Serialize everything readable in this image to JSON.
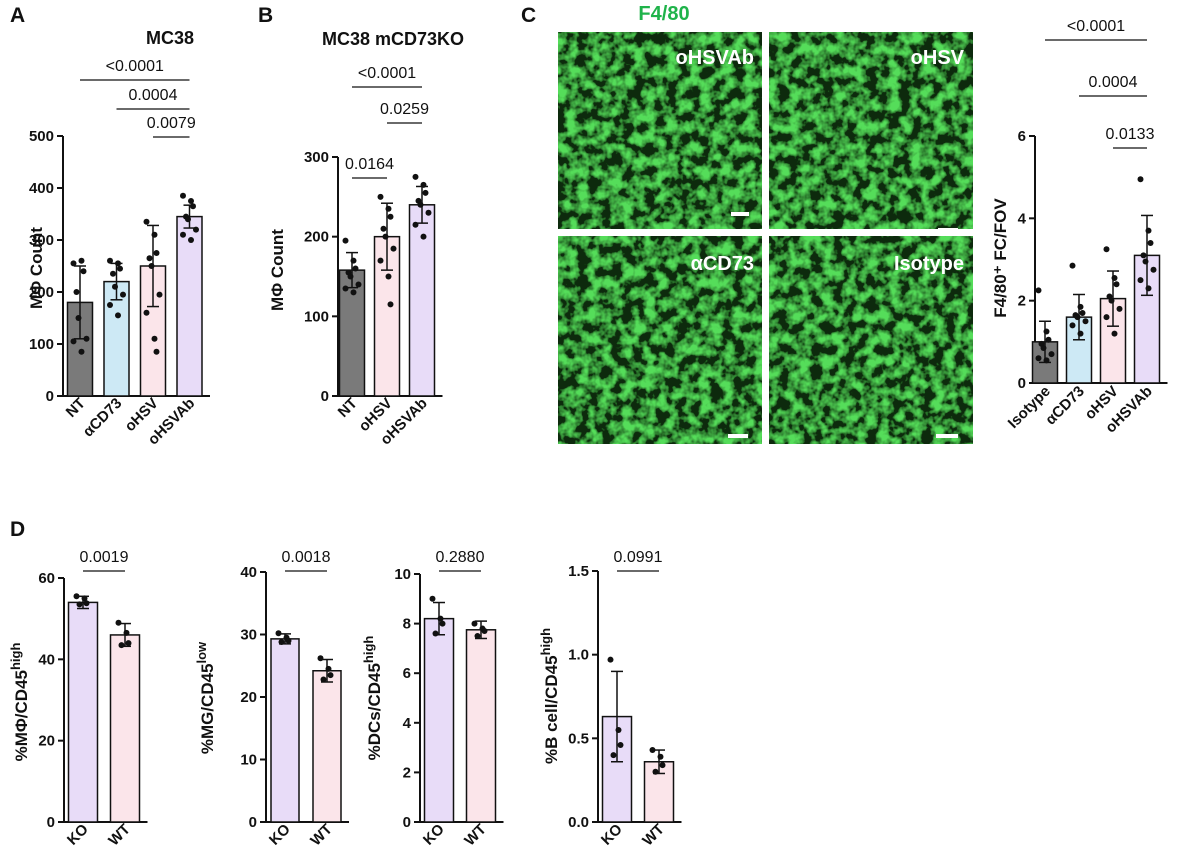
{
  "panels": {
    "A": "A",
    "B": "B",
    "C": "C",
    "D": "D"
  },
  "colors": {
    "NT": "#7a7a7a",
    "aCD73": "#cde9f5",
    "oHSV": "#fbe5ea",
    "oHSVAb": "#e8dcf8",
    "Isotype": "#7a7a7a",
    "KO": "#e8dcf8",
    "WT": "#fbe5ea",
    "micro_green": "#22c13a"
  },
  "microscopy": {
    "title": "F4/80",
    "tiles": [
      "oHSVAb",
      "oHSV",
      "αCD73",
      "Isotype"
    ]
  },
  "chart_data": [
    {
      "id": "A",
      "type": "bar",
      "title": "MC38",
      "ylabel": "MΦ Count",
      "ylim": [
        0,
        500
      ],
      "yticks": [
        "0",
        "100",
        "200",
        "300",
        "400",
        "500"
      ],
      "categories": [
        "NT",
        "αCD73",
        "oHSV",
        "oHSVAb"
      ],
      "values": [
        180,
        220,
        250,
        345
      ],
      "errors": [
        70,
        35,
        78,
        22
      ],
      "points": [
        [
          255,
          260,
          240,
          200,
          150,
          110,
          105,
          85
        ],
        [
          260,
          255,
          245,
          235,
          210,
          195,
          175,
          155
        ],
        [
          335,
          310,
          275,
          265,
          250,
          195,
          160,
          110,
          85
        ],
        [
          385,
          375,
          365,
          345,
          340,
          320,
          310,
          300
        ]
      ],
      "comparisons": [
        {
          "label": "<0.0001",
          "from": 0,
          "to": 3
        },
        {
          "label": "0.0004",
          "from": 1,
          "to": 3
        },
        {
          "label": "0.0079",
          "from": 2,
          "to": 3
        }
      ]
    },
    {
      "id": "B",
      "type": "bar",
      "title": "MC38 mCD73KO",
      "ylabel": "MΦ Count",
      "ylim": [
        0,
        300
      ],
      "yticks": [
        "0",
        "100",
        "200",
        "300"
      ],
      "categories": [
        "NT",
        "oHSV",
        "oHSVAb"
      ],
      "values": [
        158,
        200,
        240
      ],
      "errors": [
        22,
        42,
        23
      ],
      "points": [
        [
          195,
          170,
          160,
          155,
          150,
          140,
          135,
          130
        ],
        [
          250,
          235,
          225,
          210,
          200,
          185,
          170,
          150,
          115
        ],
        [
          275,
          265,
          255,
          245,
          240,
          230,
          215,
          200
        ]
      ],
      "comparisons": [
        {
          "label": "<0.0001",
          "from": 0,
          "to": 2
        },
        {
          "label": "0.0259",
          "from": 1,
          "to": 2
        },
        {
          "label": "0.0164",
          "from": 0,
          "to": 1
        }
      ]
    },
    {
      "id": "C",
      "type": "bar",
      "title": "",
      "ylabel": "F4/80⁺ FC/FOV",
      "ylim": [
        0,
        6
      ],
      "yticks": [
        "0",
        "2",
        "4",
        "6"
      ],
      "categories": [
        "Isotype",
        "αCD73",
        "oHSV",
        "oHSVAb"
      ],
      "values": [
        1.0,
        1.6,
        2.05,
        3.1
      ],
      "errors": [
        0.5,
        0.55,
        0.67,
        0.97
      ],
      "points": [
        [
          2.25,
          1.25,
          1.05,
          0.95,
          0.85,
          0.7,
          0.6,
          0.55
        ],
        [
          2.85,
          1.85,
          1.7,
          1.65,
          1.6,
          1.5,
          1.4,
          1.2
        ],
        [
          3.25,
          2.55,
          2.4,
          2.1,
          2.0,
          1.8,
          1.6,
          1.2
        ],
        [
          4.95,
          3.7,
          3.4,
          3.1,
          2.95,
          2.75,
          2.5,
          2.3
        ]
      ],
      "comparisons": [
        {
          "label": "<0.0001",
          "from": 0,
          "to": 3
        },
        {
          "label": "0.0004",
          "from": 1,
          "to": 3
        },
        {
          "label": "0.0133",
          "from": 2,
          "to": 3
        }
      ]
    },
    {
      "id": "D1",
      "type": "bar",
      "ylabel": "%MΦ/CD45high",
      "ylabel_main": "%MΦ/CD45",
      "ylabel_sup": "high",
      "ylim": [
        0,
        60
      ],
      "yticks": [
        "0",
        "20",
        "40",
        "60"
      ],
      "categories": [
        "KO",
        "WT"
      ],
      "values": [
        54,
        46
      ],
      "errors": [
        1.5,
        2.8
      ],
      "points": [
        [
          55.5,
          55,
          53.8,
          53.5
        ],
        [
          49,
          46.5,
          44,
          43.5
        ]
      ],
      "comparisons": [
        {
          "label": "0.0019",
          "from": 0,
          "to": 1
        }
      ]
    },
    {
      "id": "D2",
      "type": "bar",
      "ylabel": "%MG/CD45low",
      "ylabel_main": "%MG/CD45",
      "ylabel_sup": "low",
      "ylim": [
        0,
        40
      ],
      "yticks": [
        "0",
        "10",
        "20",
        "30",
        "40"
      ],
      "categories": [
        "KO",
        "WT"
      ],
      "values": [
        29.3,
        24.2
      ],
      "errors": [
        0.8,
        1.8
      ],
      "points": [
        [
          30.2,
          29.5,
          29.0,
          28.8
        ],
        [
          26.2,
          24.5,
          23.5,
          22.8
        ]
      ],
      "comparisons": [
        {
          "label": "0.0018",
          "from": 0,
          "to": 1
        }
      ]
    },
    {
      "id": "D3",
      "type": "bar",
      "ylabel": "%DCs/CD45high",
      "ylabel_main": "%DCs/CD45",
      "ylabel_sup": "high",
      "ylim": [
        0,
        10
      ],
      "yticks": [
        "0",
        "2",
        "4",
        "6",
        "8",
        "10"
      ],
      "categories": [
        "KO",
        "WT"
      ],
      "values": [
        8.2,
        7.75
      ],
      "errors": [
        0.65,
        0.35
      ],
      "points": [
        [
          9.0,
          8.2,
          8.0,
          7.6
        ],
        [
          8.0,
          7.8,
          7.7,
          7.5
        ]
      ],
      "comparisons": [
        {
          "label": "0.2880",
          "from": 0,
          "to": 1
        }
      ]
    },
    {
      "id": "D4",
      "type": "bar",
      "ylabel": "%B cell/CD45high",
      "ylabel_main": "%B cell/CD45",
      "ylabel_sup": "high",
      "ylim": [
        0,
        1.5
      ],
      "yticks": [
        "0.0",
        "0.5",
        "1.0",
        "1.5"
      ],
      "categories": [
        "KO",
        "WT"
      ],
      "values": [
        0.63,
        0.36
      ],
      "errors": [
        0.27,
        0.07
      ],
      "points": [
        [
          0.97,
          0.55,
          0.46,
          0.4
        ],
        [
          0.43,
          0.39,
          0.34,
          0.3
        ]
      ],
      "comparisons": [
        {
          "label": "0.0991",
          "from": 0,
          "to": 1
        }
      ]
    }
  ]
}
